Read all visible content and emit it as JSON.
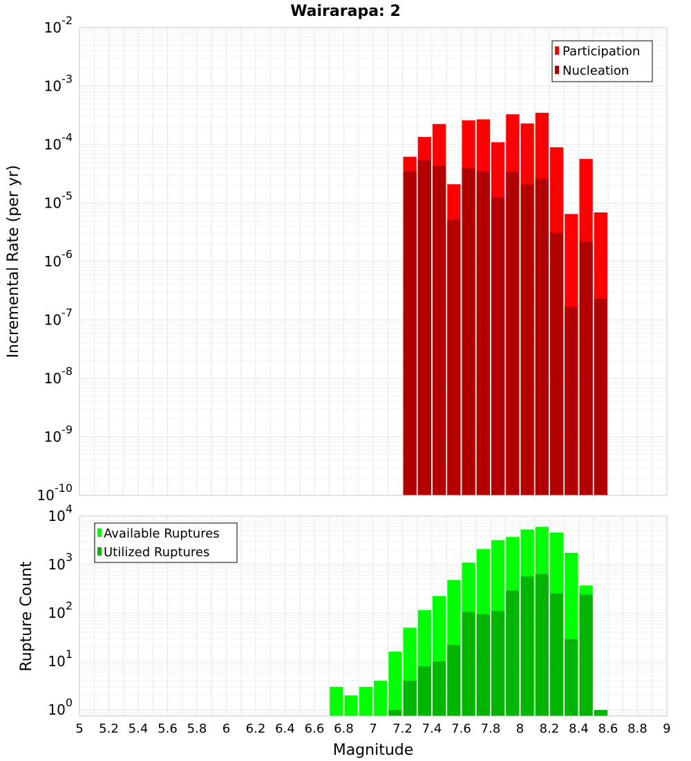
{
  "chart_data": [
    {
      "type": "bar",
      "title": "Wairarapa: 2",
      "xlabel": "",
      "ylabel": "Incremental Rate (per yr)",
      "yscale": "log",
      "ylim": [
        1e-10,
        0.01
      ],
      "xlim": [
        5,
        9
      ],
      "grid": true,
      "legend_position": "top-right",
      "x": [
        7.25,
        7.35,
        7.45,
        7.55,
        7.65,
        7.75,
        7.85,
        7.95,
        8.05,
        8.15,
        8.25,
        8.35,
        8.45,
        8.55
      ],
      "series": [
        {
          "name": "Participation",
          "color": "#ff0000",
          "values": [
            6.2e-05,
            0.000135,
            0.000225,
            2.1e-05,
            0.00026,
            0.00027,
            0.00011,
            0.00033,
            0.00023,
            0.00035,
            9e-05,
            6.5e-06,
            5.7e-05,
            6.9e-06
          ]
        },
        {
          "name": "Nucleation",
          "color": "#b20000",
          "values": [
            3.5e-05,
            5.5e-05,
            4.3e-05,
            5.2e-06,
            4e-05,
            3.5e-05,
            1.25e-05,
            3.4e-05,
            2.1e-05,
            2.6e-05,
            3.1e-06,
            1.7e-07,
            2.2e-06,
            2.3e-07
          ]
        }
      ]
    },
    {
      "type": "bar",
      "title": "",
      "xlabel": "Magnitude",
      "ylabel": "Rupture Count",
      "yscale": "log",
      "ylim": [
        0.75,
        10000
      ],
      "xlim": [
        5,
        9
      ],
      "grid": true,
      "legend_position": "top-left",
      "x": [
        6.75,
        6.85,
        6.95,
        7.05,
        7.15,
        7.25,
        7.35,
        7.45,
        7.55,
        7.65,
        7.75,
        7.85,
        7.95,
        8.05,
        8.15,
        8.25,
        8.35,
        8.45,
        8.55
      ],
      "series": [
        {
          "name": "Available Ruptures",
          "color": "#00ff00",
          "values": [
            3,
            2,
            3,
            4,
            16,
            50,
            115,
            225,
            480,
            1100,
            2100,
            3200,
            3700,
            5300,
            6000,
            4600,
            1750,
            370,
            0
          ]
        },
        {
          "name": "Utilized Ruptures",
          "color": "#00b400",
          "values": [
            0,
            0,
            0,
            0,
            1,
            4,
            8,
            10,
            22,
            105,
            95,
            110,
            290,
            570,
            640,
            255,
            29,
            240,
            1
          ]
        }
      ]
    }
  ],
  "top": {
    "title": "Wairarapa: 2",
    "ylabel": "Incremental Rate (per yr)",
    "ytick_exponents": [
      "-2",
      "-3",
      "-4",
      "-5",
      "-6",
      "-7",
      "-8",
      "-9",
      "-10"
    ],
    "legend": [
      "Participation",
      "Nucleation"
    ]
  },
  "bottom": {
    "ylabel": "Rupture Count",
    "xlabel": "Magnitude",
    "ytick_exponents": [
      "4",
      "3",
      "2",
      "1",
      "0"
    ],
    "xtick_labels": [
      "5",
      "5.2",
      "5.4",
      "5.6",
      "5.8",
      "6",
      "6.2",
      "6.4",
      "6.6",
      "6.8",
      "7",
      "7.2",
      "7.4",
      "7.6",
      "7.8",
      "8",
      "8.2",
      "8.4",
      "8.6",
      "8.8",
      "9"
    ],
    "legend": [
      "Available Ruptures",
      "Utilized Ruptures"
    ]
  },
  "colors": {
    "participation": "#ff0000",
    "nucleation": "#b20000",
    "available": "#00ff00",
    "utilized": "#00b400"
  }
}
